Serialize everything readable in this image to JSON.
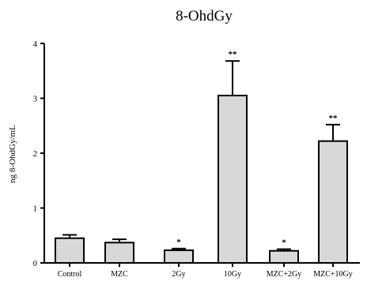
{
  "chart_data": {
    "type": "bar",
    "title": "8-OhdGy",
    "xlabel": "",
    "ylabel": "ng 8-OhdGy/mL",
    "ylim": [
      0,
      4
    ],
    "yticks": [
      "0",
      "1",
      "2",
      "3",
      "4"
    ],
    "grid": false,
    "legend": "none",
    "categories": [
      "Control",
      "MZC",
      "2Gy",
      "10Gy",
      "MZC+2Gy",
      "MZC+10Gy"
    ],
    "series": [
      {
        "values": [
          0.45,
          0.37,
          0.23,
          3.05,
          0.22,
          2.22
        ],
        "errors": [
          0.06,
          0.06,
          0.03,
          0.63,
          0.03,
          0.3
        ],
        "annotations": [
          "",
          "",
          "*",
          "**",
          "*",
          "**"
        ]
      }
    ],
    "colors": {
      "bar_fill": "#d8d8d8",
      "bar_stroke": "#000000"
    }
  }
}
